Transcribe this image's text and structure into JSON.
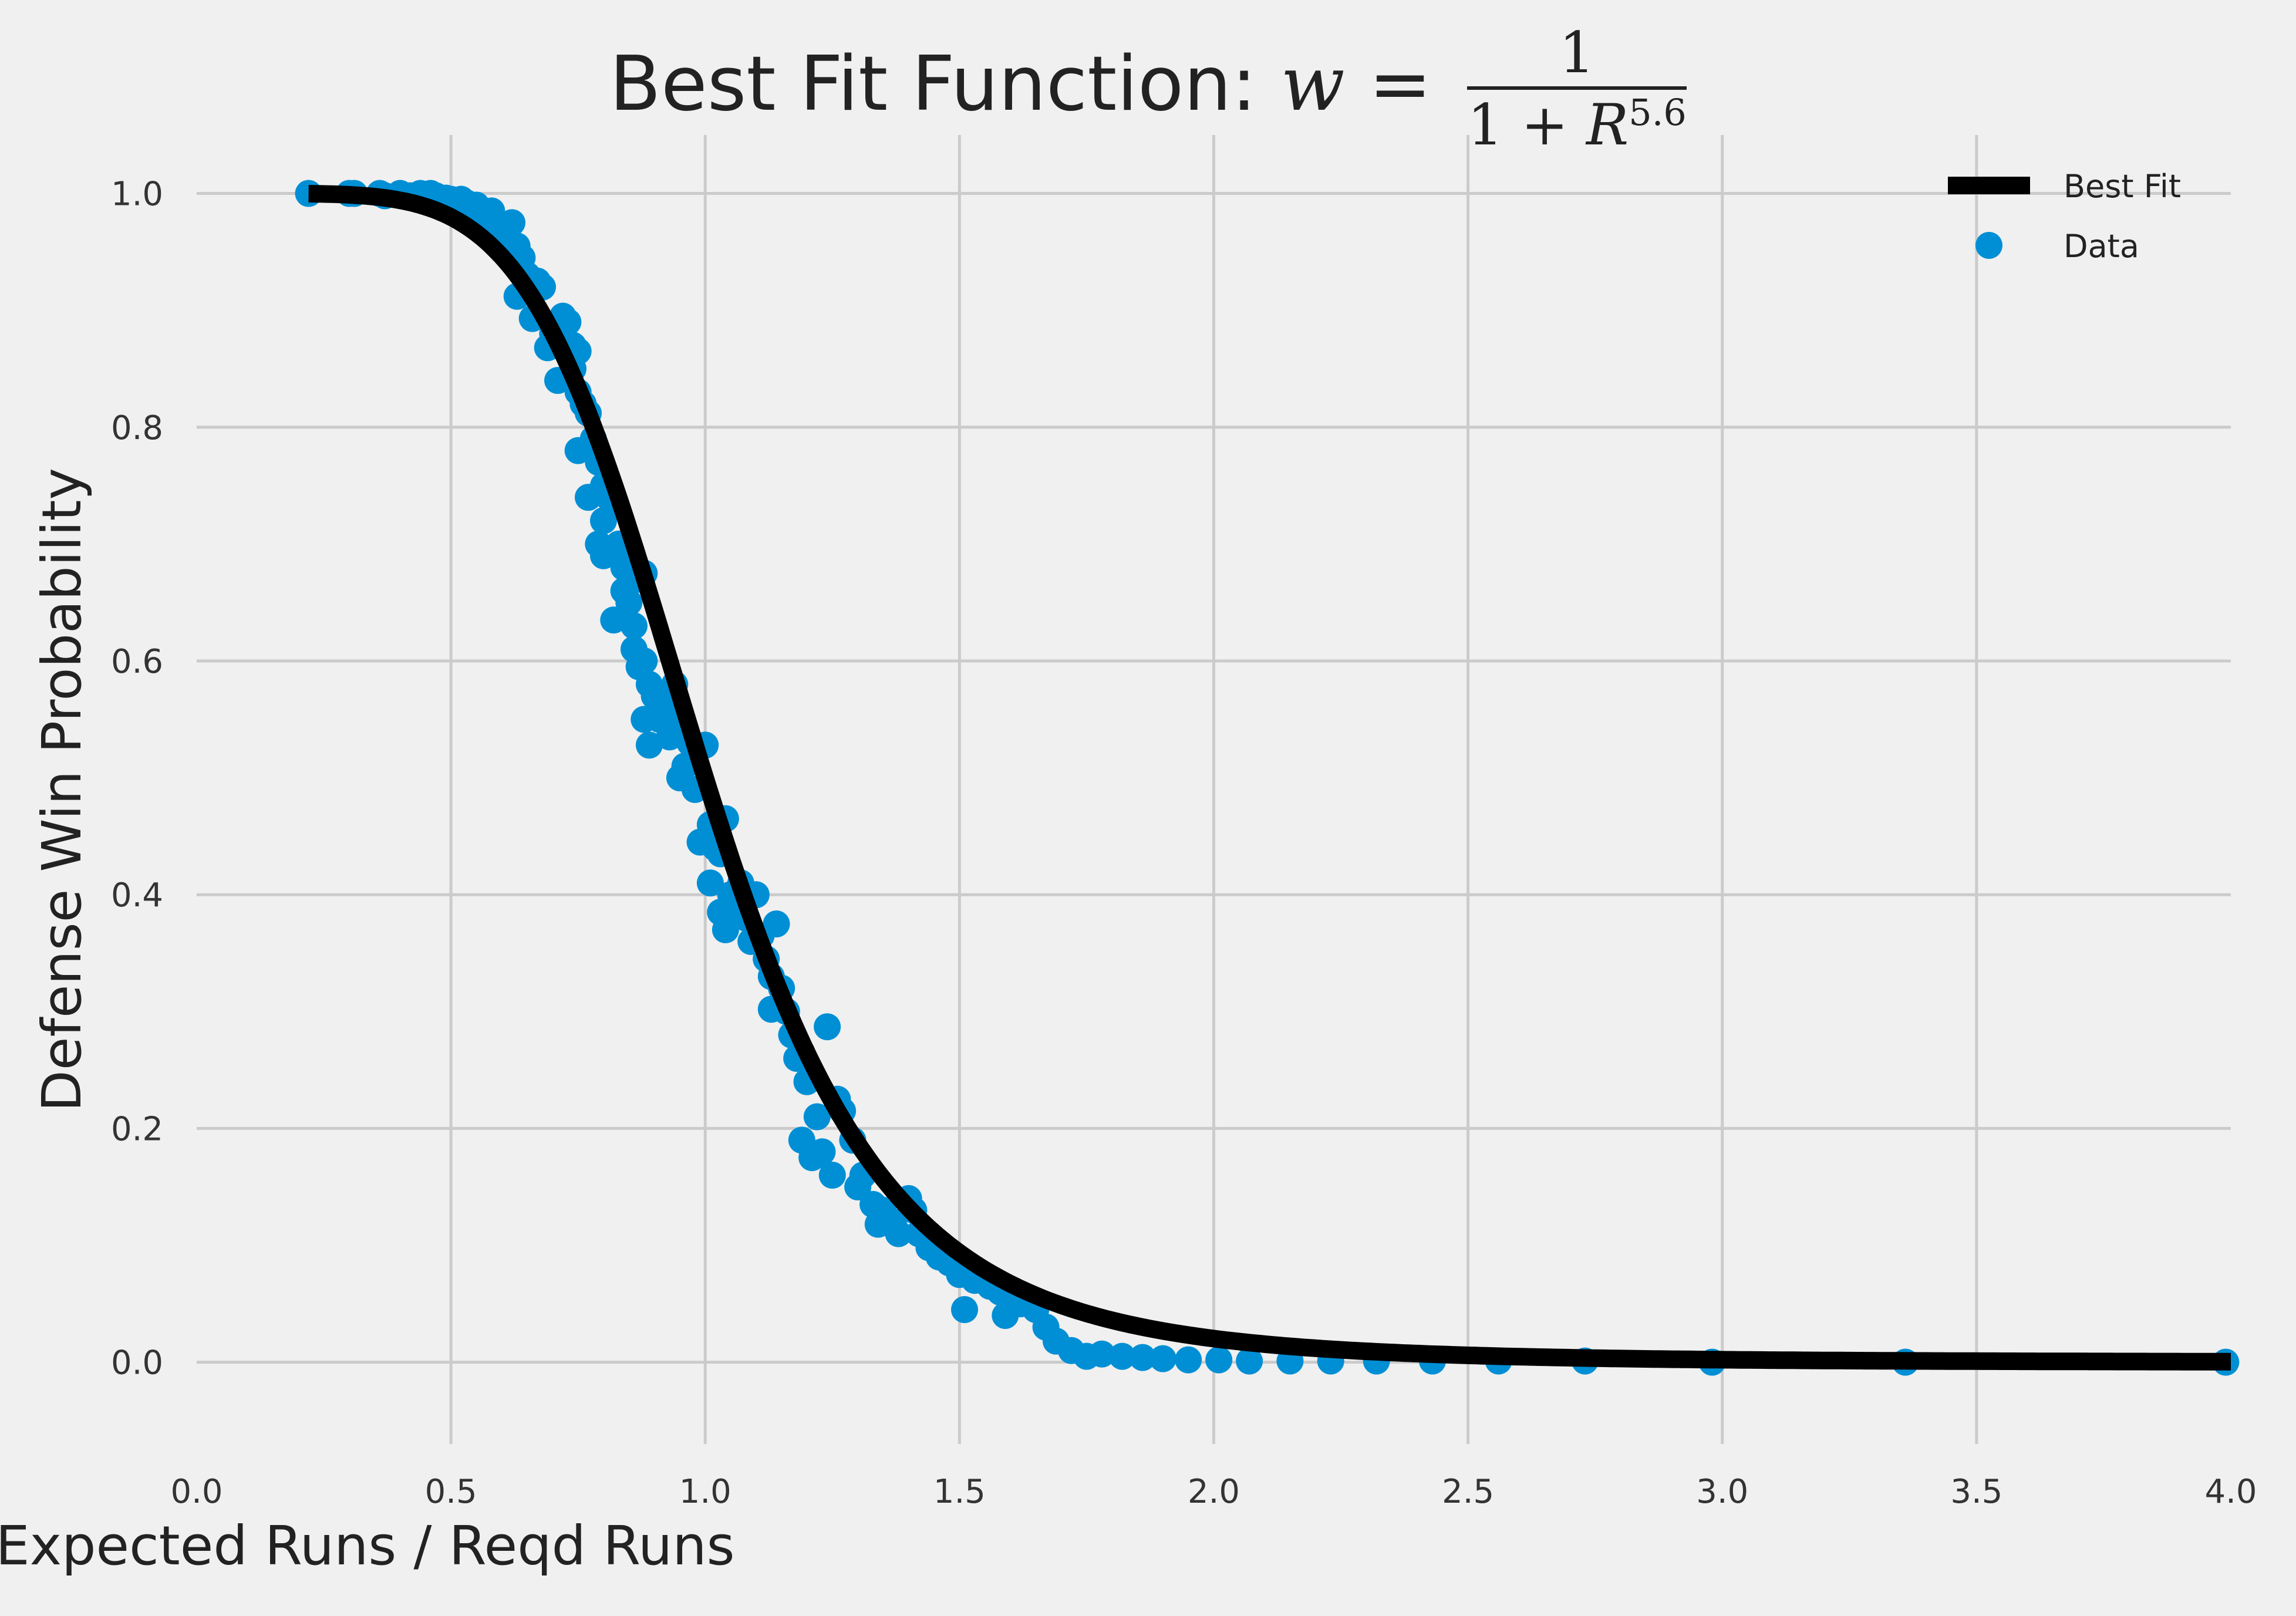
{
  "chart_data": {
    "type": "scatter",
    "title_prefix": "Best Fit Function: ",
    "title_lhs": "w",
    "title_eq": " = ",
    "title_frac_num": "1",
    "title_frac_den": "1 + ",
    "title_frac_den_var": "R",
    "title_frac_den_exp": "5.6",
    "xlabel": "Expected Runs / Reqd Runs",
    "ylabel": "Defense Win Probability",
    "xlim": [
      0.0,
      4.0
    ],
    "ylim": [
      -0.07,
      1.05
    ],
    "xticks": [
      "0.0",
      "0.5",
      "1.0",
      "1.5",
      "2.0",
      "2.5",
      "3.0",
      "3.5",
      "4.0"
    ],
    "yticks": [
      "0.0",
      "0.2",
      "0.4",
      "0.6",
      "0.8",
      "1.0"
    ],
    "grid": true,
    "legend_position": "top-right",
    "colors": {
      "fit": "#000000",
      "data": "#008fd5",
      "grid": "#cbcbcb",
      "background": "#f0f0f0"
    },
    "series": [
      {
        "name": "Best Fit",
        "kind": "line",
        "formula": "1/(1+R^5.6)",
        "x_range": [
          0.22,
          4.0
        ]
      },
      {
        "name": "Data",
        "kind": "scatter",
        "points": [
          [
            0.22,
            1.0
          ],
          [
            0.3,
            1.0
          ],
          [
            0.31,
            1.0
          ],
          [
            0.36,
            1.0
          ],
          [
            0.37,
            0.998
          ],
          [
            0.4,
            1.0
          ],
          [
            0.42,
            0.998
          ],
          [
            0.44,
            1.0
          ],
          [
            0.46,
            1.0
          ],
          [
            0.47,
            0.998
          ],
          [
            0.49,
            0.996
          ],
          [
            0.5,
            0.995
          ],
          [
            0.51,
            0.99
          ],
          [
            0.52,
            0.995
          ],
          [
            0.53,
            0.992
          ],
          [
            0.54,
            0.985
          ],
          [
            0.55,
            0.99
          ],
          [
            0.56,
            0.983
          ],
          [
            0.57,
            0.975
          ],
          [
            0.58,
            0.985
          ],
          [
            0.59,
            0.965
          ],
          [
            0.6,
            0.96
          ],
          [
            0.61,
            0.97
          ],
          [
            0.62,
            0.975
          ],
          [
            0.63,
            0.955
          ],
          [
            0.64,
            0.945
          ],
          [
            0.63,
            0.912
          ],
          [
            0.65,
            0.93
          ],
          [
            0.66,
            0.92
          ],
          [
            0.67,
            0.925
          ],
          [
            0.66,
            0.893
          ],
          [
            0.68,
            0.92
          ],
          [
            0.69,
            0.868
          ],
          [
            0.7,
            0.88
          ],
          [
            0.71,
            0.84
          ],
          [
            0.72,
            0.895
          ],
          [
            0.73,
            0.89
          ],
          [
            0.74,
            0.87
          ],
          [
            0.75,
            0.865
          ],
          [
            0.74,
            0.85
          ],
          [
            0.75,
            0.83
          ],
          [
            0.76,
            0.82
          ],
          [
            0.77,
            0.812
          ],
          [
            0.75,
            0.78
          ],
          [
            0.78,
            0.79
          ],
          [
            0.79,
            0.77
          ],
          [
            0.77,
            0.74
          ],
          [
            0.8,
            0.75
          ],
          [
            0.8,
            0.72
          ],
          [
            0.81,
            0.74
          ],
          [
            0.82,
            0.735
          ],
          [
            0.79,
            0.7
          ],
          [
            0.8,
            0.69
          ],
          [
            0.83,
            0.7
          ],
          [
            0.84,
            0.68
          ],
          [
            0.84,
            0.66
          ],
          [
            0.82,
            0.635
          ],
          [
            0.85,
            0.65
          ],
          [
            0.86,
            0.63
          ],
          [
            0.87,
            0.67
          ],
          [
            0.88,
            0.675
          ],
          [
            0.86,
            0.61
          ],
          [
            0.87,
            0.595
          ],
          [
            0.88,
            0.6
          ],
          [
            0.89,
            0.58
          ],
          [
            0.9,
            0.57
          ],
          [
            0.88,
            0.55
          ],
          [
            0.89,
            0.528
          ],
          [
            0.91,
            0.55
          ],
          [
            0.92,
            0.56
          ],
          [
            0.93,
            0.535
          ],
          [
            0.94,
            0.58
          ],
          [
            0.95,
            0.545
          ],
          [
            0.95,
            0.5
          ],
          [
            0.96,
            0.51
          ],
          [
            0.97,
            0.53
          ],
          [
            0.98,
            0.49
          ],
          [
            0.99,
            0.445
          ],
          [
            1.0,
            0.528
          ],
          [
            1.01,
            0.46
          ],
          [
            1.02,
            0.44
          ],
          [
            1.03,
            0.435
          ],
          [
            1.01,
            0.41
          ],
          [
            1.04,
            0.465
          ],
          [
            1.03,
            0.385
          ],
          [
            1.04,
            0.37
          ],
          [
            1.05,
            0.4
          ],
          [
            1.06,
            0.395
          ],
          [
            1.07,
            0.41
          ],
          [
            1.08,
            0.38
          ],
          [
            1.09,
            0.36
          ],
          [
            1.1,
            0.4
          ],
          [
            1.11,
            0.365
          ],
          [
            1.12,
            0.345
          ],
          [
            1.13,
            0.33
          ],
          [
            1.14,
            0.375
          ],
          [
            1.15,
            0.32
          ],
          [
            1.16,
            0.3
          ],
          [
            1.13,
            0.302
          ],
          [
            1.17,
            0.28
          ],
          [
            1.18,
            0.26
          ],
          [
            1.19,
            0.265
          ],
          [
            1.2,
            0.24
          ],
          [
            1.22,
            0.21
          ],
          [
            1.24,
            0.287
          ],
          [
            1.26,
            0.225
          ],
          [
            1.27,
            0.215
          ],
          [
            1.29,
            0.19
          ],
          [
            1.19,
            0.19
          ],
          [
            1.21,
            0.175
          ],
          [
            1.23,
            0.18
          ],
          [
            1.25,
            0.16
          ],
          [
            1.3,
            0.15
          ],
          [
            1.31,
            0.16
          ],
          [
            1.33,
            0.135
          ],
          [
            1.35,
            0.13
          ],
          [
            1.34,
            0.118
          ],
          [
            1.37,
            0.12
          ],
          [
            1.38,
            0.11
          ],
          [
            1.4,
            0.14
          ],
          [
            1.41,
            0.13
          ],
          [
            1.42,
            0.11
          ],
          [
            1.44,
            0.098
          ],
          [
            1.46,
            0.09
          ],
          [
            1.48,
            0.085
          ],
          [
            1.5,
            0.075
          ],
          [
            1.51,
            0.045
          ],
          [
            1.53,
            0.07
          ],
          [
            1.56,
            0.065
          ],
          [
            1.58,
            0.06
          ],
          [
            1.59,
            0.04
          ],
          [
            1.62,
            0.05
          ],
          [
            1.65,
            0.045
          ],
          [
            1.67,
            0.03
          ],
          [
            1.69,
            0.018
          ],
          [
            1.72,
            0.01
          ],
          [
            1.75,
            0.005
          ],
          [
            1.78,
            0.007
          ],
          [
            1.82,
            0.005
          ],
          [
            1.86,
            0.004
          ],
          [
            1.9,
            0.003
          ],
          [
            1.95,
            0.002
          ],
          [
            2.01,
            0.002
          ],
          [
            2.07,
            0.001
          ],
          [
            2.15,
            0.001
          ],
          [
            2.23,
            0.001
          ],
          [
            2.32,
            0.001
          ],
          [
            2.43,
            0.001
          ],
          [
            2.56,
            0.001
          ],
          [
            2.73,
            0.001
          ],
          [
            2.98,
            0.0
          ],
          [
            3.36,
            0.0
          ],
          [
            3.99,
            0.0
          ]
        ]
      }
    ]
  }
}
